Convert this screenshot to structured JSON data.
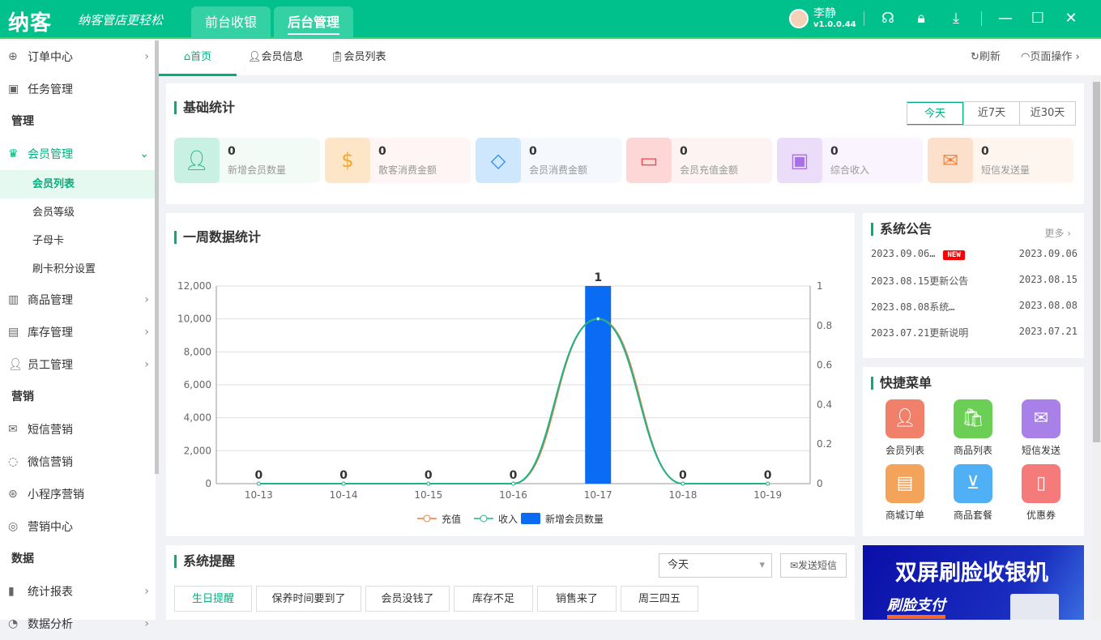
{
  "header": {
    "logo": "纳客",
    "slogan": "纳客管店更轻松",
    "tabs": [
      {
        "label": "前台收银"
      },
      {
        "label": "后台管理"
      }
    ],
    "user": "李静",
    "version": "v1.0.0.44"
  },
  "sidebar": {
    "items": [
      {
        "type": "item",
        "label": "订单中心",
        "icon": "globe-icon",
        "ch": "›"
      },
      {
        "type": "item",
        "label": "任务管理",
        "icon": "task-icon"
      },
      {
        "type": "head",
        "label": "管理"
      },
      {
        "type": "item",
        "label": "会员管理",
        "icon": "crown-icon",
        "ch": "⌄",
        "open": true
      },
      {
        "type": "sub",
        "label": "会员列表",
        "active": true
      },
      {
        "type": "sub",
        "label": "会员等级"
      },
      {
        "type": "sub",
        "label": "子母卡"
      },
      {
        "type": "sub",
        "label": "刷卡积分设置"
      },
      {
        "type": "item",
        "label": "商品管理",
        "icon": "goods-icon",
        "ch": "›"
      },
      {
        "type": "item",
        "label": "库存管理",
        "icon": "stock-icon",
        "ch": "›"
      },
      {
        "type": "item",
        "label": "员工管理",
        "icon": "staff-icon",
        "ch": "›"
      },
      {
        "type": "head",
        "label": "营销"
      },
      {
        "type": "item",
        "label": "短信营销",
        "icon": "mail-icon"
      },
      {
        "type": "item",
        "label": "微信营销",
        "icon": "wechat-icon"
      },
      {
        "type": "item",
        "label": "小程序营销",
        "icon": "miniapp-icon"
      },
      {
        "type": "item",
        "label": "营销中心",
        "icon": "target-icon"
      },
      {
        "type": "head",
        "label": "数据"
      },
      {
        "type": "item",
        "label": "统计报表",
        "icon": "chart-icon",
        "ch": "›"
      },
      {
        "type": "item",
        "label": "数据分析",
        "icon": "analysis-icon",
        "ch": "›"
      }
    ]
  },
  "tabs": {
    "items": [
      "首页",
      "会员信息",
      "会员列表"
    ],
    "refresh": "刷新",
    "page_ops": "页面操作"
  },
  "stats": {
    "title": "基础统计",
    "ranges": [
      "今天",
      "近7天",
      "近30天"
    ],
    "items": [
      {
        "value": "0",
        "label": "新增会员数量",
        "icon": "user-icon",
        "color": "#1cb58a",
        "bg": "#c9f1e3",
        "card": "#f2fbf6"
      },
      {
        "value": "0",
        "label": "散客消费金额",
        "icon": "coin-icon",
        "color": "#f2a531",
        "bg": "#fde5c8",
        "card": "#fff5f5"
      },
      {
        "value": "0",
        "label": "会员消费金额",
        "icon": "diamond-icon",
        "color": "#2a8ef0",
        "bg": "#cfe7fd",
        "card": "#f5f8fd"
      },
      {
        "value": "0",
        "label": "会员充值金额",
        "icon": "card-icon",
        "color": "#f0464a",
        "bg": "#fdd6d6",
        "card": "#fdf3f3"
      },
      {
        "value": "0",
        "label": "综合收入",
        "icon": "wallet-icon",
        "color": "#a871e6",
        "bg": "#ebdcfa",
        "card": "#f9f4fe"
      },
      {
        "value": "0",
        "label": "短信发送量",
        "icon": "envelope-icon",
        "color": "#f5823a",
        "bg": "#fde0cc",
        "card": "#fef5ef"
      }
    ]
  },
  "chart_data": {
    "type": "bar",
    "title": "一周数据统计",
    "categories": [
      "10-13",
      "10-14",
      "10-15",
      "10-16",
      "10-17",
      "10-18",
      "10-19"
    ],
    "series": [
      {
        "name": "充值",
        "type": "line",
        "axis": "left",
        "values": [
          0,
          0,
          0,
          0,
          10000,
          0,
          0
        ],
        "color": "#f07b3f"
      },
      {
        "name": "收入",
        "type": "line",
        "axis": "left",
        "values": [
          0,
          0,
          0,
          0,
          10000,
          0,
          0
        ],
        "color": "#1cb58a"
      },
      {
        "name": "新增会员数量",
        "type": "bar",
        "axis": "right",
        "values": [
          0,
          0,
          0,
          0,
          1,
          0,
          0
        ],
        "color": "#0a6cf5"
      }
    ],
    "ylim_left": [
      0,
      12000
    ],
    "yticks_left": [
      "0",
      "2,000",
      "4,000",
      "6,000",
      "8,000",
      "10,000",
      "12,000"
    ],
    "ylim_right": [
      0,
      1
    ],
    "yticks_right": [
      "0",
      "0.2",
      "0.4",
      "0.6",
      "0.8",
      "1"
    ],
    "grid": true,
    "legend": "bottom"
  },
  "notice": {
    "title": "系统公告",
    "more": "更多",
    "items": [
      {
        "text": "2023.09.06…",
        "new": "NEW",
        "date": "2023.09.06"
      },
      {
        "text": "2023.08.15更新公告",
        "date": "2023.08.15"
      },
      {
        "text": "2023.08.08系统…",
        "date": "2023.08.08"
      },
      {
        "text": "2023.07.21更新说明",
        "date": "2023.07.21"
      }
    ]
  },
  "quick": {
    "title": "快捷菜单",
    "items": [
      {
        "label": "会员列表",
        "icon": "member-icon",
        "color": "#f0806a"
      },
      {
        "label": "商品列表",
        "icon": "bag-icon",
        "color": "#6ccf55"
      },
      {
        "label": "短信发送",
        "icon": "sms-icon",
        "color": "#a880e8"
      },
      {
        "label": "商城订单",
        "icon": "order-icon",
        "color": "#f4a35a"
      },
      {
        "label": "商品套餐",
        "icon": "basket-icon",
        "color": "#4fb0f5"
      },
      {
        "label": "优惠券",
        "icon": "coupon-icon",
        "color": "#f57a7a"
      }
    ]
  },
  "reminder": {
    "title": "系统提醒",
    "select": "今天",
    "send": "发送短信",
    "tabs": [
      "生日提醒",
      "保养时间要到了",
      "会员没钱了",
      "库存不足",
      "销售来了",
      "周三四五"
    ]
  },
  "banner": {
    "title": "双屏刷脸收银机",
    "sub": "刷脸支付"
  }
}
